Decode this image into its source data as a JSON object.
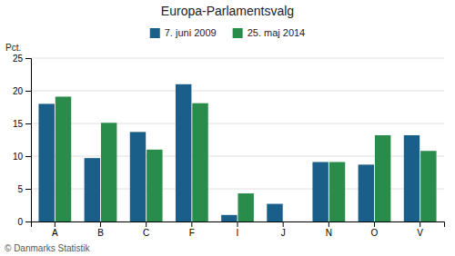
{
  "chart_data": {
    "type": "bar",
    "title": "Europa-Parlamentsvalg",
    "categories": [
      "A",
      "B",
      "C",
      "F",
      "I",
      "J",
      "N",
      "O",
      "V"
    ],
    "series": [
      {
        "name": "7. juni 2009",
        "color": "#1a5f8a",
        "values": [
          18.0,
          9.7,
          13.7,
          21.0,
          1.0,
          2.7,
          9.1,
          8.7,
          13.2
        ]
      },
      {
        "name": "25. maj 2014",
        "color": "#2a8c4a",
        "values": [
          19.1,
          15.1,
          11.0,
          18.1,
          4.3,
          0.0,
          9.1,
          13.2,
          10.8
        ]
      }
    ],
    "ylabel": "Pct.",
    "ylim": [
      0,
      25
    ],
    "yticks": [
      0,
      5,
      10,
      15,
      20,
      25
    ],
    "grid": true,
    "legend": "top",
    "annotations": [
      "© Danmarks Statistik"
    ]
  }
}
